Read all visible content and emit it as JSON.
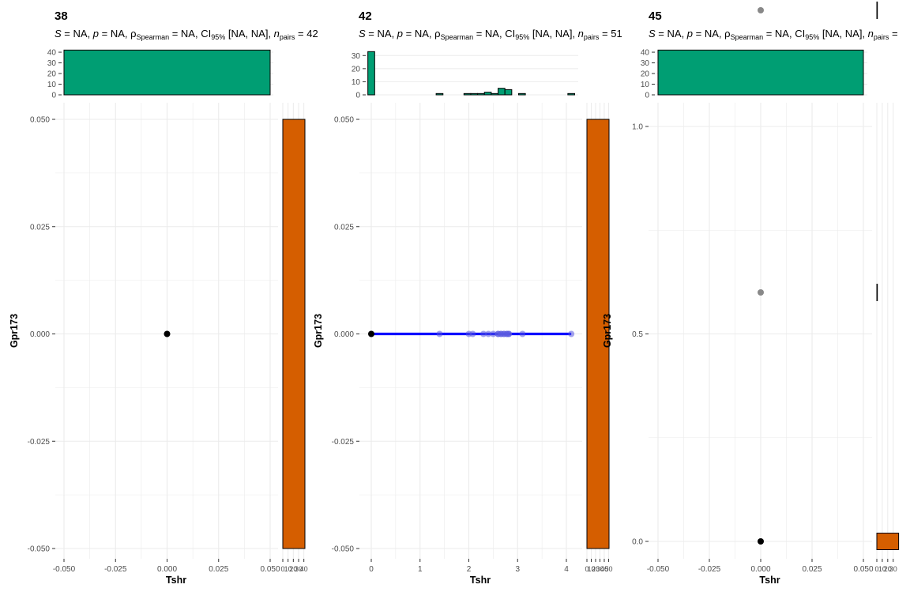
{
  "colors": {
    "top_hist_fill": "#009E73",
    "side_hist_fill": "#D55E00",
    "line": "#0000FF",
    "grid": "#EBEBEB",
    "point_dark": "#000000",
    "point_grey": "#888888",
    "point_blue": "#5A5AE0"
  },
  "chart_data": [
    {
      "type": "scatter",
      "title": "38",
      "subtitle": {
        "s": "NA",
        "p": "NA",
        "rho": "NA",
        "ci_label": "CI",
        "ci_sub": "95%",
        "ci": "[NA, NA]",
        "n_label": "n",
        "n_sub": "pairs",
        "n": "42"
      },
      "xlabel": "Tshr",
      "ylabel": "Gpr173",
      "xlim": [
        -0.05,
        0.05
      ],
      "ylim": [
        -0.05,
        0.05
      ],
      "x_ticks": [
        -0.05,
        -0.025,
        0,
        0.025,
        0.05
      ],
      "x_tick_labels": [
        "-0.050",
        "-0.025",
        "0.000",
        "0.025",
        "0.050"
      ],
      "y_ticks": [
        -0.05,
        -0.025,
        0,
        0.025,
        0.05
      ],
      "y_tick_labels": [
        "-0.050",
        "-0.025",
        "0.000",
        "0.025",
        "0.050"
      ],
      "points": [
        {
          "x": 0,
          "y": 0,
          "count": 42
        }
      ],
      "fit_line": null,
      "top_hist": {
        "y_ticks": [
          0,
          10,
          20,
          30,
          40
        ],
        "ylim": [
          0,
          43
        ],
        "bins": [
          {
            "x0": -0.05,
            "x1": 0.05,
            "count": 42
          }
        ]
      },
      "side_hist": {
        "tick_labels": [
          "0",
          "10",
          "20",
          "30",
          "40"
        ],
        "xlim": [
          0,
          42
        ],
        "bins": [
          {
            "y0": -0.05,
            "y1": 0.05,
            "count": 42
          }
        ]
      }
    },
    {
      "type": "scatter",
      "title": "42",
      "subtitle": {
        "s": "NA",
        "p": "NA",
        "rho": "NA",
        "ci_label": "CI",
        "ci_sub": "95%",
        "ci": "[NA, NA]",
        "n_label": "n",
        "n_sub": "pairs",
        "n": "51"
      },
      "xlabel": "Tshr",
      "ylabel": "Gpr173",
      "xlim": [
        -0.2,
        4.25
      ],
      "ylim": [
        -0.05,
        0.05
      ],
      "x_ticks": [
        0,
        1,
        2,
        3,
        4
      ],
      "x_tick_labels": [
        "0",
        "1",
        "2",
        "3",
        "4"
      ],
      "y_ticks": [
        -0.05,
        -0.025,
        0,
        0.025,
        0.05
      ],
      "y_tick_labels": [
        "-0.050",
        "-0.025",
        "0.000",
        "0.025",
        "0.050"
      ],
      "points": [
        {
          "x": 0,
          "y": 0,
          "count": 33
        },
        {
          "x": 1.4,
          "y": 0,
          "count": 1
        },
        {
          "x": 2.0,
          "y": 0,
          "count": 1
        },
        {
          "x": 2.08,
          "y": 0,
          "count": 1
        },
        {
          "x": 2.3,
          "y": 0,
          "count": 1
        },
        {
          "x": 2.4,
          "y": 0,
          "count": 1
        },
        {
          "x": 2.5,
          "y": 0,
          "count": 1
        },
        {
          "x": 2.6,
          "y": 0,
          "count": 2
        },
        {
          "x": 2.66,
          "y": 0,
          "count": 2
        },
        {
          "x": 2.72,
          "y": 0,
          "count": 2
        },
        {
          "x": 2.78,
          "y": 0,
          "count": 2
        },
        {
          "x": 2.82,
          "y": 0,
          "count": 2
        },
        {
          "x": 3.1,
          "y": 0,
          "count": 1
        },
        {
          "x": 4.1,
          "y": 0,
          "count": 1
        }
      ],
      "fit_line": {
        "x0": 0,
        "x1": 4.1,
        "y0": 0,
        "y1": 0
      },
      "top_hist": {
        "y_ticks": [
          0,
          10,
          20,
          30
        ],
        "ylim": [
          0,
          35
        ],
        "bins": [
          {
            "x0": -0.07,
            "x1": 0.07,
            "count": 33
          },
          {
            "x0": 0.07,
            "x1": 1.33,
            "count": 0
          },
          {
            "x0": 1.33,
            "x1": 1.47,
            "count": 1
          },
          {
            "x0": 1.47,
            "x1": 1.9,
            "count": 0
          },
          {
            "x0": 1.9,
            "x1": 2.04,
            "count": 1
          },
          {
            "x0": 2.04,
            "x1": 2.18,
            "count": 1
          },
          {
            "x0": 2.18,
            "x1": 2.32,
            "count": 1
          },
          {
            "x0": 2.32,
            "x1": 2.46,
            "count": 2
          },
          {
            "x0": 2.46,
            "x1": 2.6,
            "count": 1
          },
          {
            "x0": 2.6,
            "x1": 2.74,
            "count": 5
          },
          {
            "x0": 2.74,
            "x1": 2.88,
            "count": 4
          },
          {
            "x0": 2.88,
            "x1": 3.02,
            "count": 0
          },
          {
            "x0": 3.02,
            "x1": 3.16,
            "count": 1
          },
          {
            "x0": 3.16,
            "x1": 4.03,
            "count": 0
          },
          {
            "x0": 4.03,
            "x1": 4.17,
            "count": 1
          }
        ]
      },
      "side_hist": {
        "tick_labels": [
          "0",
          "10",
          "20",
          "30",
          "40",
          "50"
        ],
        "xlim": [
          0,
          51
        ],
        "bins": [
          {
            "y0": -0.05,
            "y1": 0.05,
            "count": 51
          }
        ]
      }
    },
    {
      "type": "scatter",
      "title": "45",
      "subtitle": {
        "s": "NA",
        "p": "NA",
        "rho": "NA",
        "ci_label": "CI",
        "ci_sub": "95%",
        "ci": "[NA, NA]",
        "n_label": "n",
        "n_sub": "pairs",
        "n": ""
      },
      "xlabel": "Tshr",
      "ylabel": "Gpr173",
      "xlim": [
        -0.05,
        0.05
      ],
      "ylim": [
        -0.06,
        1.31
      ],
      "x_ticks": [
        -0.05,
        -0.025,
        0,
        0.025,
        0.05
      ],
      "x_tick_labels": [
        "-0.050",
        "-0.025",
        "0.000",
        "0.025",
        "0.050"
      ],
      "y_ticks": [
        0,
        0.5,
        1.0
      ],
      "y_tick_labels": [
        "0.0",
        "0.5",
        "1.0"
      ],
      "points": [
        {
          "x": 0,
          "y": 0,
          "count": 40
        },
        {
          "x": 0,
          "y": 0.6,
          "count": 1
        },
        {
          "x": 0,
          "y": 1.28,
          "count": 1
        }
      ],
      "fit_line": null,
      "top_hist": {
        "y_ticks": [
          0,
          10,
          20,
          30,
          40
        ],
        "ylim": [
          0,
          43
        ],
        "bins": [
          {
            "x0": -0.05,
            "x1": 0.05,
            "count": 42
          }
        ]
      },
      "side_hist": {
        "tick_labels": [
          "0",
          "10",
          "20",
          "30"
        ],
        "xlim": [
          0,
          42
        ],
        "bins": [
          {
            "y0": -0.02,
            "y1": 0.02,
            "count": 40
          },
          {
            "y0": 0.58,
            "y1": 0.62,
            "count": 1
          },
          {
            "y0": 1.26,
            "y1": 1.3,
            "count": 1
          }
        ]
      }
    }
  ]
}
